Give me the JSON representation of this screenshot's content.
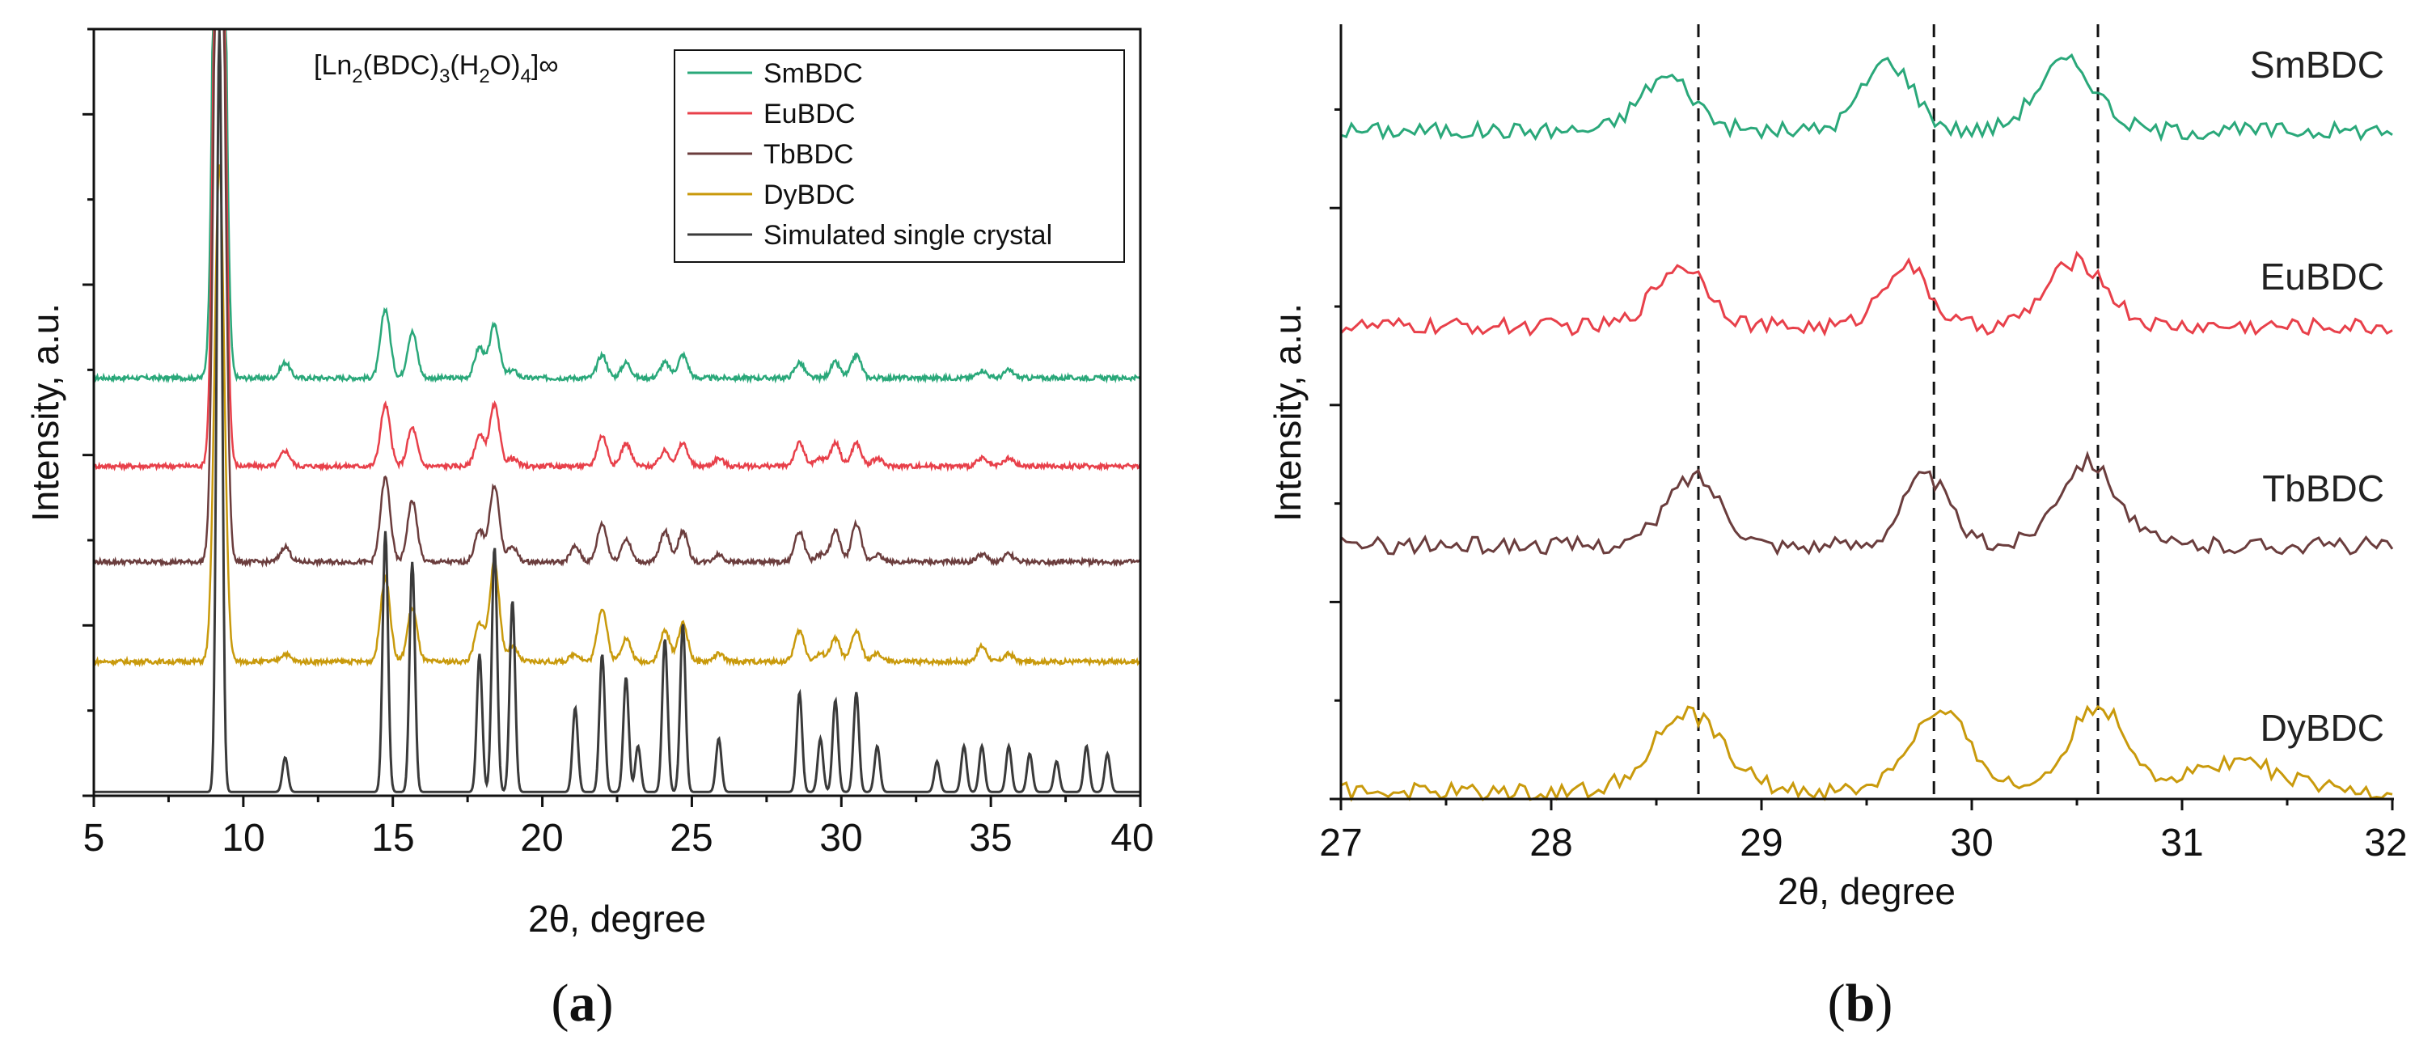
{
  "chart_data": [
    {
      "panel": "a",
      "type": "line",
      "panel_label": {
        "open": "(",
        "letter": "a",
        "close": ")"
      },
      "title_parts": {
        "a": "[Ln",
        "b": "2",
        "c": "(BDC)",
        "d": "3",
        "e": "(H",
        "f": "2",
        "g": "O)",
        "h": "4",
        "i": "]∞"
      },
      "xlabel": "2θ, degree",
      "ylabel": "Intensity, a.u.",
      "xlim": [
        5,
        40
      ],
      "ylim": [
        0,
        1
      ],
      "xticks": [
        "5",
        "10",
        "15",
        "20",
        "25",
        "30",
        "35",
        "40"
      ],
      "legend_position": "top-right",
      "peak_positions": [
        9.2,
        11.4,
        14.75,
        15.65,
        17.9,
        18.4,
        19.0,
        21.1,
        22.0,
        22.8,
        23.2,
        24.1,
        24.7,
        25.9,
        28.6,
        29.3,
        29.8,
        30.5,
        31.2,
        33.2,
        34.1,
        34.7,
        35.6,
        36.3,
        37.2,
        38.2,
        38.9
      ],
      "series": [
        {
          "name": "SmBDC",
          "color": "#2aa87a",
          "baseline": 0.545,
          "peak_heights": [
            1.3,
            0.02,
            0.09,
            0.06,
            0.04,
            0.07,
            0.01,
            0.0,
            0.03,
            0.02,
            0.0,
            0.02,
            0.03,
            0.0,
            0.02,
            0.0,
            0.02,
            0.03,
            0.0,
            0.0,
            0.0,
            0.01,
            0.01,
            0.0,
            0.0,
            0.0,
            0.0
          ]
        },
        {
          "name": "EuBDC",
          "color": "#e8404a",
          "baseline": 0.43,
          "peak_heights": [
            1.2,
            0.02,
            0.08,
            0.05,
            0.04,
            0.08,
            0.01,
            0.0,
            0.04,
            0.03,
            0.0,
            0.02,
            0.03,
            0.01,
            0.03,
            0.01,
            0.03,
            0.03,
            0.01,
            0.0,
            0.0,
            0.01,
            0.01,
            0.0,
            0.0,
            0.0,
            0.0
          ]
        },
        {
          "name": "TbBDC",
          "color": "#6b3d3d",
          "baseline": 0.305,
          "peak_heights": [
            1.2,
            0.02,
            0.11,
            0.08,
            0.04,
            0.1,
            0.02,
            0.02,
            0.05,
            0.03,
            0.0,
            0.04,
            0.04,
            0.01,
            0.04,
            0.01,
            0.04,
            0.05,
            0.01,
            0.0,
            0.0,
            0.01,
            0.01,
            0.0,
            0.0,
            0.0,
            0.0
          ]
        },
        {
          "name": "DyBDC",
          "color": "#c99a0c",
          "baseline": 0.175,
          "peak_heights": [
            0.65,
            0.01,
            0.11,
            0.07,
            0.05,
            0.13,
            0.02,
            0.01,
            0.07,
            0.03,
            0.0,
            0.04,
            0.05,
            0.01,
            0.04,
            0.01,
            0.03,
            0.04,
            0.01,
            0.0,
            0.0,
            0.02,
            0.01,
            0.0,
            0.0,
            0.0,
            0.0
          ]
        },
        {
          "name": "Simulated single crystal",
          "color": "#3a3a3a",
          "baseline": 0.005,
          "peak_heights": [
            1.0,
            0.045,
            0.34,
            0.3,
            0.18,
            0.32,
            0.25,
            0.11,
            0.18,
            0.15,
            0.06,
            0.2,
            0.22,
            0.07,
            0.13,
            0.07,
            0.12,
            0.13,
            0.06,
            0.04,
            0.06,
            0.06,
            0.06,
            0.05,
            0.04,
            0.06,
            0.05
          ]
        }
      ]
    },
    {
      "panel": "b",
      "type": "line",
      "panel_label": {
        "open": "(",
        "letter": "b",
        "close": ")"
      },
      "xlabel": "2θ, degree",
      "ylabel": "Intensity, a.u.",
      "xlim": [
        27,
        32
      ],
      "ylim": [
        0,
        1
      ],
      "xticks": [
        "27",
        "28",
        "29",
        "30",
        "31",
        "32"
      ],
      "reference_lines_x": [
        28.7,
        29.82,
        30.6
      ],
      "series": [
        {
          "name": "SmBDC",
          "color": "#2aa87a",
          "baseline": 0.87,
          "peaks": [
            [
              28.55,
              0.07,
              0.13
            ],
            [
              29.6,
              0.09,
              0.12
            ],
            [
              30.45,
              0.09,
              0.14
            ]
          ]
        },
        {
          "name": "EuBDC",
          "color": "#e8404a",
          "baseline": 0.615,
          "peaks": [
            [
              28.62,
              0.08,
              0.13
            ],
            [
              29.68,
              0.08,
              0.11
            ],
            [
              30.5,
              0.085,
              0.14
            ]
          ]
        },
        {
          "name": "TbBDC",
          "color": "#6b3d3d",
          "baseline": 0.33,
          "peaks": [
            [
              28.68,
              0.09,
              0.13
            ],
            [
              29.78,
              0.09,
              0.11
            ],
            [
              30.55,
              0.11,
              0.14
            ]
          ]
        },
        {
          "name": "DyBDC",
          "color": "#c99a0c",
          "baseline": 0.01,
          "peaks": [
            [
              28.65,
              0.1,
              0.17
            ],
            [
              29.85,
              0.1,
              0.15
            ],
            [
              30.6,
              0.11,
              0.14
            ],
            [
              31.25,
              0.04,
              0.2
            ]
          ]
        }
      ]
    }
  ]
}
